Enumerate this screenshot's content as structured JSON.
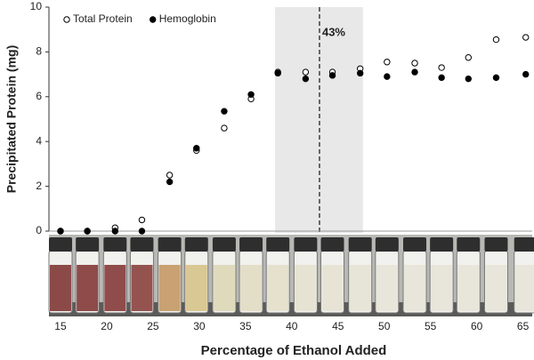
{
  "chart_data": {
    "type": "scatter",
    "xlabel": "Percentage of Ethanol Added",
    "ylabel": "Precipitated Protein (mg)",
    "x": [
      15,
      17.9,
      20.9,
      23.8,
      26.8,
      29.7,
      32.7,
      35.6,
      38.5,
      41.5,
      44.4,
      47.4,
      50.3,
      53.3,
      56.2,
      59.1,
      62.1,
      65.3
    ],
    "series": [
      {
        "name": "Total Protein",
        "color": "#000000",
        "marker": "open",
        "values": [
          0,
          0,
          0.15,
          0.5,
          2.5,
          3.6,
          4.6,
          5.9,
          7.1,
          7.1,
          7.1,
          7.25,
          7.55,
          7.5,
          7.3,
          7.75,
          8.55,
          8.65
        ]
      },
      {
        "name": "Hemoglobin",
        "color": "#000000",
        "marker": "filled",
        "values": [
          0,
          0,
          0,
          0,
          2.2,
          3.7,
          5.35,
          6.1,
          7.05,
          6.8,
          6.95,
          7.05,
          6.9,
          7.1,
          6.85,
          6.8,
          6.85,
          7.0
        ]
      }
    ],
    "xlim": [
      13.75,
      66
    ],
    "xticks": [
      15,
      20,
      25,
      30,
      35,
      40,
      45,
      50,
      55,
      60,
      65
    ],
    "ylim": [
      0,
      10
    ],
    "yticks": [
      0,
      2,
      4,
      6,
      8,
      10
    ],
    "shaded_region": [
      38.2,
      47.7
    ],
    "vline": {
      "value": 43,
      "label": "43%"
    },
    "legend": "upper-left",
    "grid": false
  }
}
